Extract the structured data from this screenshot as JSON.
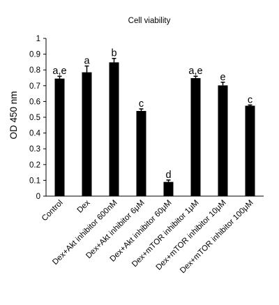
{
  "chart_data": {
    "type": "bar",
    "title": "Cell viability",
    "xlabel": "",
    "ylabel": "OD 450 nm",
    "ylim": [
      0,
      1
    ],
    "yticks": [
      "0",
      "0.1",
      "0.2",
      "0.3",
      "0.4",
      "0.5",
      "0.6",
      "0.7",
      "0.8",
      "0.9",
      "1"
    ],
    "categories": [
      "Control",
      "Dex",
      "Dex+Akt inhibitor 600nM",
      "Dex+Akt inhibitor 6μM",
      "Dex+Akt inhibitor 60μM",
      "Dex+mTOR inhibitor 1μM",
      "Dex+mTOR inhibitor 10μM",
      "Dex+mTOR inhibitor 100μM"
    ],
    "values": [
      0.745,
      0.785,
      0.848,
      0.54,
      0.09,
      0.748,
      0.702,
      0.573
    ],
    "errors": [
      0.015,
      0.04,
      0.025,
      0.013,
      0.012,
      0.012,
      0.02,
      0.005
    ],
    "significance": [
      "a,e",
      "a",
      "b",
      "c",
      "d",
      "a,e",
      "e",
      "c"
    ],
    "bar_color": "#000000",
    "grid": false,
    "legend": "none"
  }
}
